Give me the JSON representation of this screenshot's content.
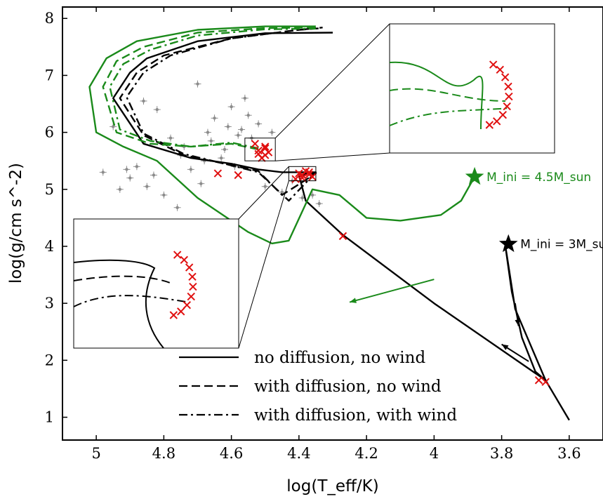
{
  "chart_data": {
    "type": "line",
    "xlabel": "log(T_eff/K)",
    "ylabel": "log(g/cm s^-2)",
    "x_inverted": true,
    "xlim": [
      5.1,
      3.5
    ],
    "ylim": [
      0.6,
      8.2
    ],
    "xticks": [
      5,
      4.8,
      4.6,
      4.4,
      4.2,
      4,
      3.8,
      3.6
    ],
    "xtick_labels": [
      "5",
      "4.8",
      "4.6",
      "4.4",
      "4.2",
      "4",
      "3.8",
      "3.6"
    ],
    "yticks": [
      1,
      2,
      3,
      4,
      5,
      6,
      7,
      8
    ],
    "ytick_labels": [
      "1",
      "2",
      "3",
      "4",
      "5",
      "6",
      "7",
      "8"
    ],
    "legend": {
      "placement": "lower-center",
      "entries": [
        {
          "label": "no diffusion, no wind",
          "dash": "solid"
        },
        {
          "label": "with diffusion, no wind",
          "dash": "dashed"
        },
        {
          "label": "with diffusion, with wind",
          "dash": "dashdot"
        }
      ]
    },
    "mass_labels": [
      {
        "text": "M_ini = 4.5M_sun",
        "color": "#1a8a1a",
        "x": 3.88,
        "y": 5.22
      },
      {
        "text": "M_ini = 3M_sun",
        "color": "#000000",
        "x": 3.78,
        "y": 4.04
      }
    ],
    "colors": {
      "track_3": "#000000",
      "track_4_5": "#1a8a1a",
      "marker": "#e01010",
      "observed": "#8c8c8c"
    },
    "series": [
      {
        "name": "3 Msun, no diffusion, no wind",
        "color": "#000000",
        "dash": "solid",
        "x": [
          3.6,
          3.67,
          3.76,
          3.79,
          3.77,
          3.74,
          3.7,
          3.67,
          4.0,
          4.27,
          4.38,
          4.4,
          4.35,
          4.4,
          4.45,
          4.52,
          4.6,
          4.72,
          4.86,
          4.95,
          4.9,
          4.85,
          4.7,
          4.5,
          4.3
        ],
        "y": [
          0.95,
          1.65,
          2.9,
          4.05,
          3.2,
          2.4,
          1.8,
          1.65,
          3.0,
          4.2,
          4.8,
          5.25,
          5.3,
          5.3,
          5.3,
          5.35,
          5.45,
          5.55,
          5.8,
          6.6,
          7.05,
          7.3,
          7.6,
          7.74,
          7.75
        ]
      },
      {
        "name": "3 Msun, with diffusion, no wind",
        "color": "#000000",
        "dash": "dashed",
        "x": [
          4.4,
          4.35,
          4.45,
          4.52,
          4.62,
          4.74,
          4.86,
          4.93,
          4.88,
          4.8,
          4.6,
          4.4,
          4.33
        ],
        "y": [
          5.25,
          5.28,
          4.9,
          5.32,
          5.45,
          5.6,
          5.95,
          6.6,
          7.05,
          7.35,
          7.65,
          7.8,
          7.83
        ]
      },
      {
        "name": "3 Msun, with diffusion, with wind",
        "color": "#000000",
        "dash": "dashdot",
        "x": [
          4.4,
          4.35,
          4.43,
          4.52,
          4.62,
          4.74,
          4.86,
          4.91,
          4.86,
          4.78,
          4.6,
          4.4,
          4.33
        ],
        "y": [
          5.25,
          5.3,
          4.8,
          5.3,
          5.45,
          5.62,
          5.98,
          6.62,
          7.05,
          7.35,
          7.65,
          7.8,
          7.84
        ]
      },
      {
        "name": "4.5 Msun, no diffusion, no wind",
        "color": "#1a8a1a",
        "dash": "solid",
        "x": [
          3.88,
          3.92,
          3.98,
          4.1,
          4.2,
          4.28,
          4.36,
          4.43,
          4.48,
          4.55,
          4.7,
          4.82,
          4.92,
          5.0,
          5.02,
          4.97,
          4.88,
          4.7,
          4.5,
          4.35
        ],
        "y": [
          5.22,
          4.8,
          4.55,
          4.45,
          4.5,
          4.9,
          5.0,
          4.1,
          4.05,
          4.25,
          4.85,
          5.5,
          5.75,
          6.0,
          6.8,
          7.3,
          7.6,
          7.8,
          7.86,
          7.86
        ]
      },
      {
        "name": "4.5 Msun, with diffusion, no wind",
        "color": "#1a8a1a",
        "dash": "dashed",
        "x": [
          4.52,
          4.6,
          4.72,
          4.84,
          4.94,
          4.98,
          4.94,
          4.86,
          4.7,
          4.5,
          4.35
        ],
        "y": [
          5.7,
          5.8,
          5.75,
          5.8,
          6.0,
          6.8,
          7.25,
          7.5,
          7.75,
          7.83,
          7.84
        ]
      },
      {
        "name": "4.5 Msun, with diffusion, with wind",
        "color": "#1a8a1a",
        "dash": "dashdot",
        "x": [
          4.52,
          4.6,
          4.72,
          4.84,
          4.93,
          4.96,
          4.92,
          4.84,
          4.7,
          4.5,
          4.35
        ],
        "y": [
          5.72,
          5.82,
          5.75,
          5.85,
          6.05,
          6.8,
          7.2,
          7.45,
          7.7,
          7.81,
          7.82
        ]
      }
    ],
    "marker_points": {
      "x": [
        3.69,
        3.67,
        4.27,
        4.5,
        4.52,
        4.5,
        4.53,
        4.51,
        4.49,
        4.52,
        4.5,
        4.39,
        4.37,
        4.36,
        4.38,
        4.4,
        4.39,
        4.37,
        4.41,
        4.58,
        4.64
      ],
      "y": [
        1.65,
        1.62,
        4.18,
        5.72,
        5.68,
        5.6,
        5.8,
        5.55,
        5.65,
        5.62,
        5.75,
        5.25,
        5.3,
        5.22,
        5.32,
        5.28,
        5.2,
        5.26,
        5.18,
        5.25,
        5.28
      ]
    },
    "observed_points": {
      "x": [
        4.65,
        4.61,
        4.58,
        4.55,
        4.62,
        4.68,
        4.72,
        4.75,
        4.78,
        4.82,
        4.86,
        4.88,
        4.9,
        4.93,
        4.95,
        4.98,
        4.85,
        4.8,
        4.7,
        4.6,
        4.56,
        4.52,
        4.5,
        4.45,
        4.42,
        4.39,
        4.36,
        4.34,
        4.66,
        4.63,
        4.59,
        4.54,
        4.48,
        4.57,
        4.67,
        4.74,
        4.83,
        4.91,
        4.76,
        4.69
      ],
      "y": [
        6.25,
        6.1,
        5.95,
        6.3,
        5.7,
        5.5,
        5.35,
        5.6,
        5.9,
        6.4,
        6.55,
        5.4,
        5.2,
        5.0,
        6.1,
        5.3,
        5.05,
        4.9,
        6.85,
        6.45,
        6.6,
        6.15,
        5.05,
        4.95,
        5.15,
        4.85,
        4.9,
        4.75,
        5.85,
        5.55,
        5.4,
        5.9,
        6.0,
        6.05,
        6.0,
        5.75,
        5.25,
        5.35,
        4.68,
        5.1
      ]
    },
    "insets": [
      {
        "name": "inset-upper",
        "zoom_xlim": [
          4.56,
          4.47
        ],
        "zoom_ylim": [
          5.5,
          5.9
        ]
      },
      {
        "name": "inset-lower",
        "zoom_xlim": [
          4.43,
          4.35
        ],
        "zoom_ylim": [
          5.15,
          5.4
        ]
      }
    ]
  }
}
